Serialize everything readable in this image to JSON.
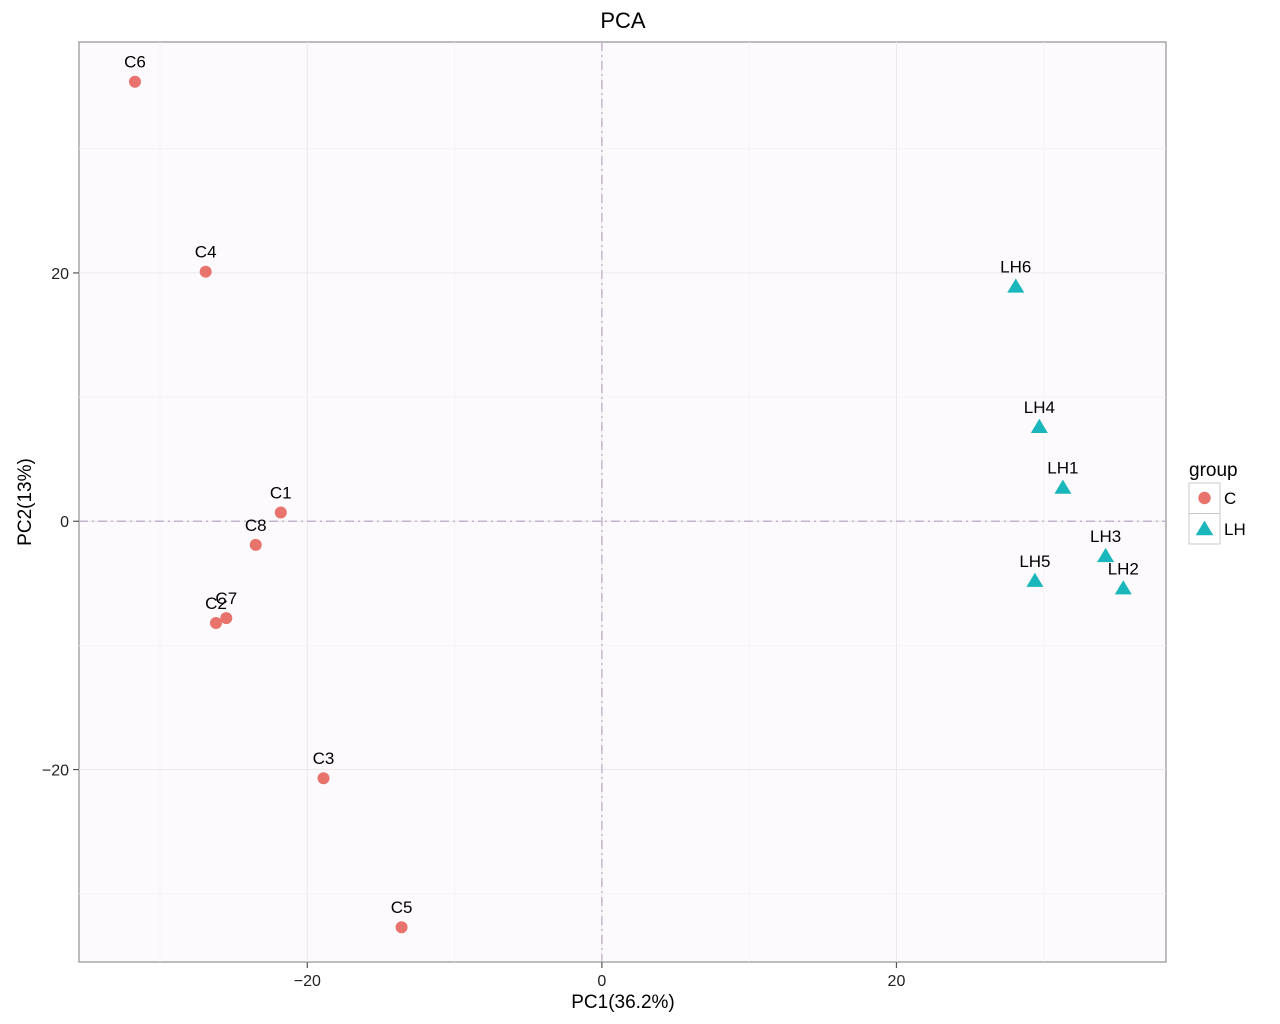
{
  "chart_data": {
    "type": "scatter",
    "title": "PCA",
    "xlabel": "PC1(36.2%)",
    "ylabel": "PC2(13%)",
    "xlim": [
      -35.5,
      38.3
    ],
    "ylim": [
      -35.5,
      38.6
    ],
    "xticks": [
      -20,
      0,
      20
    ],
    "yticks": [
      -20,
      0,
      20
    ],
    "xtick_labels": [
      "−20",
      "0",
      "20"
    ],
    "ytick_labels": [
      "−20",
      "0",
      "20"
    ],
    "reference_lines": {
      "x": 0,
      "y": 0
    },
    "grid": true,
    "legend": {
      "title": "group",
      "placement": "right",
      "entries": [
        {
          "name": "C",
          "shape": "circle",
          "color": "#E8736C"
        },
        {
          "name": "LH",
          "shape": "triangle",
          "color": "#19B6BB"
        }
      ]
    },
    "series": [
      {
        "name": "C",
        "shape": "circle",
        "color": "#E8736C",
        "points": [
          {
            "label": "C6",
            "x": -31.7,
            "y": 35.4
          },
          {
            "label": "C4",
            "x": -26.9,
            "y": 20.1
          },
          {
            "label": "C1",
            "x": -21.8,
            "y": 0.7
          },
          {
            "label": "C8",
            "x": -23.5,
            "y": -1.9
          },
          {
            "label": "C2",
            "x": -26.2,
            "y": -8.2
          },
          {
            "label": "C7",
            "x": -25.5,
            "y": -7.8
          },
          {
            "label": "C3",
            "x": -18.9,
            "y": -20.7
          },
          {
            "label": "C5",
            "x": -13.6,
            "y": -32.7
          }
        ]
      },
      {
        "name": "LH",
        "shape": "triangle",
        "color": "#19B6BB",
        "points": [
          {
            "label": "LH6",
            "x": 28.1,
            "y": 18.9
          },
          {
            "label": "LH4",
            "x": 29.7,
            "y": 7.6
          },
          {
            "label": "LH1",
            "x": 31.3,
            "y": 2.7
          },
          {
            "label": "LH3",
            "x": 34.2,
            "y": -2.8
          },
          {
            "label": "LH5",
            "x": 29.4,
            "y": -4.8
          },
          {
            "label": "LH2",
            "x": 35.4,
            "y": -5.4
          }
        ]
      }
    ]
  }
}
